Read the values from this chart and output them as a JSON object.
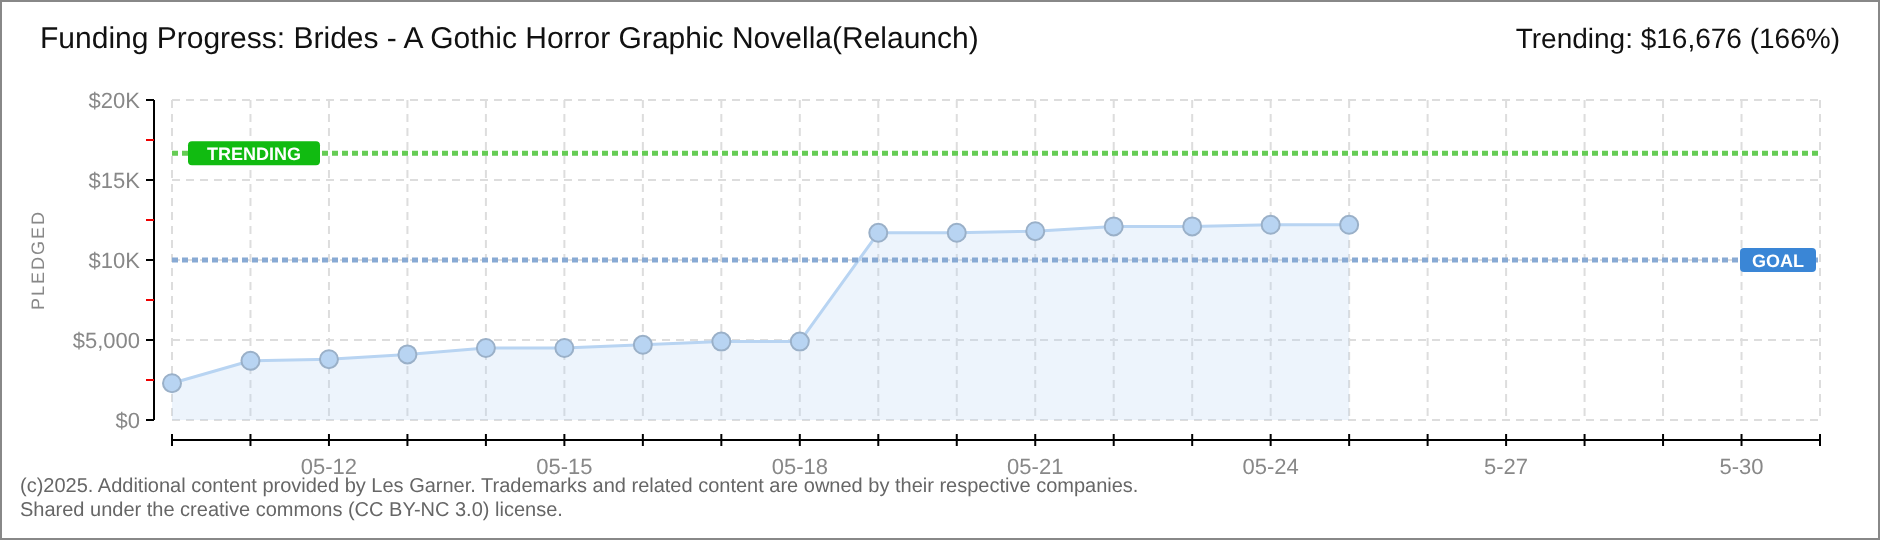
{
  "chart_data": {
    "type": "area",
    "title": "Funding Progress: Brides - A Gothic Horror Graphic Novella(Relaunch)",
    "subtitle": "Trending: $16,676 (166%)",
    "ylabel": "PLEDGED",
    "x": [
      "--05-10",
      "--05-11",
      "--05-12",
      "--05-13",
      "--05-14",
      "--05-15",
      "--05-16",
      "--05-17",
      "--05-18",
      "--05-19",
      "--05-20",
      "--05-21",
      "--05-22",
      "--05-23",
      "--05-24",
      "--05-25"
    ],
    "series": [
      {
        "color": "#b8d4f2",
        "values": [
          2300,
          3700,
          3800,
          4100,
          4500,
          4500,
          4700,
          4900,
          4900,
          11700,
          11700,
          11800,
          12100,
          12100,
          12200,
          12200
        ]
      }
    ],
    "xlim": [
      "--05-10",
      "--05-31"
    ],
    "xticks": [
      {
        "value": "--05-10",
        "label": null
      },
      {
        "value": "--05-11",
        "label": null
      },
      {
        "value": "--05-12",
        "label": "05-12"
      },
      {
        "value": "--05-13",
        "label": null
      },
      {
        "value": "--05-14",
        "label": null
      },
      {
        "value": "--05-15",
        "label": "05-15"
      },
      {
        "value": "--05-16",
        "label": null
      },
      {
        "value": "--05-17",
        "label": null
      },
      {
        "value": "--05-18",
        "label": "05-18"
      },
      {
        "value": "--05-19",
        "label": null
      },
      {
        "value": "--05-20",
        "label": null
      },
      {
        "value": "--05-21",
        "label": "05-21"
      },
      {
        "value": "--05-22",
        "label": null
      },
      {
        "value": "--05-23",
        "label": null
      },
      {
        "value": "--05-24",
        "label": "05-24"
      },
      {
        "value": "--05-25",
        "label": null
      },
      {
        "value": "--05-26",
        "label": null
      },
      {
        "value": "--05-27",
        "label": "5-27"
      },
      {
        "value": "--05-28",
        "label": null
      },
      {
        "value": "--05-29",
        "label": null
      },
      {
        "value": "--05-30",
        "label": "5-30"
      },
      {
        "value": "--05-31",
        "label": null
      }
    ],
    "ylim": [
      0,
      20000
    ],
    "yticks": [
      {
        "value": 0,
        "label": "$0"
      },
      {
        "value": 2500,
        "label": null
      },
      {
        "value": 5000,
        "label": "$5,000"
      },
      {
        "value": 7500,
        "label": null
      },
      {
        "value": 10000,
        "label": "$10K"
      },
      {
        "value": 12500,
        "label": null
      },
      {
        "value": 15000,
        "label": "$15K"
      },
      {
        "value": 17500,
        "label": null
      },
      {
        "value": 20000,
        "label": "$20K"
      }
    ],
    "ref_lines": [
      {
        "axis": "y",
        "value": 16676,
        "label": "TRENDING",
        "color": "#66cc55",
        "line_style": "dotted"
      },
      {
        "axis": "y",
        "value": 10000,
        "label": "GOAL",
        "color": "#88aad4",
        "line_style": "dotted"
      }
    ],
    "grid": true,
    "marker": "circle",
    "annotations": [
      "(c)2025. Additional content provided by Les Garner. Trademarks and related content are owned by their respective companies.",
      "Shared under the creative commons (CC BY-NC 3.0) license."
    ]
  }
}
